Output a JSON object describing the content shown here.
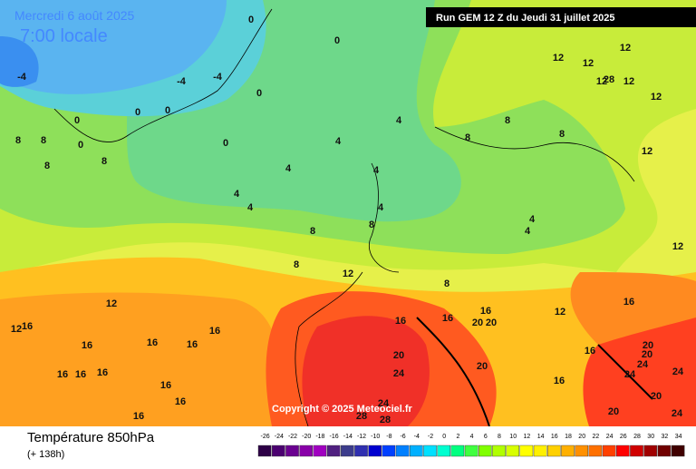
{
  "map": {
    "date": "Mercredi 6 août 2025",
    "time": "7:00 locale",
    "run": "Run GEM 12 Z du Jeudi 31 juillet 2025",
    "copyright": "Copyright © 2025 Meteociel.fr",
    "contour_labels": [
      -4,
      -4,
      -4,
      0,
      0,
      0,
      0,
      0,
      0,
      0,
      0,
      8,
      8,
      8,
      8,
      4,
      4,
      4,
      4,
      4,
      4,
      4,
      4,
      4,
      8,
      8,
      8,
      8,
      8,
      8,
      8,
      12,
      12,
      12,
      12,
      12,
      12,
      12,
      12,
      12,
      12,
      12,
      12,
      16,
      16,
      16,
      16,
      16,
      16,
      16,
      16,
      16,
      16,
      16,
      16,
      16,
      16,
      16,
      16,
      16,
      20,
      20,
      20,
      20,
      20,
      20,
      20,
      20,
      24,
      24,
      24,
      24,
      24,
      24,
      28,
      28,
      28
    ]
  },
  "footer": {
    "title": "Température 850hPa",
    "lead": "(+ 138h)"
  },
  "scale": {
    "ticks": [
      -26,
      -24,
      -22,
      -20,
      -18,
      -16,
      -14,
      -12,
      -10,
      -8,
      -6,
      -4,
      -2,
      0,
      2,
      4,
      6,
      8,
      10,
      12,
      14,
      16,
      18,
      20,
      22,
      24,
      26,
      28,
      30,
      32,
      34
    ],
    "colors": [
      "#2d0046",
      "#4b0070",
      "#6a0090",
      "#8800a8",
      "#a000c0",
      "#502080",
      "#3c3c8c",
      "#3030b0",
      "#0000d0",
      "#0040ff",
      "#0080ff",
      "#00b0ff",
      "#00e0ff",
      "#00ffd0",
      "#00ff80",
      "#40ff40",
      "#80ff00",
      "#b0ff00",
      "#d8ff00",
      "#ffff00",
      "#fff000",
      "#ffd000",
      "#ffb000",
      "#ff9000",
      "#ff7000",
      "#ff4000",
      "#ff0000",
      "#d00000",
      "#a00000",
      "#700000",
      "#400000"
    ]
  }
}
